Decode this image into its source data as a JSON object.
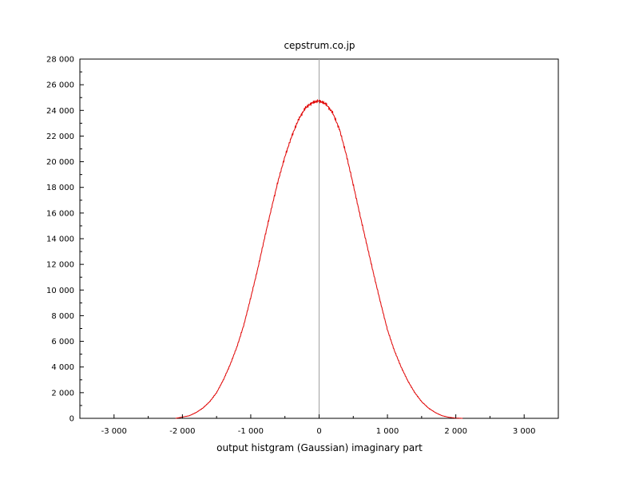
{
  "chart_data": {
    "type": "line",
    "title": "cepstrum.co.jp",
    "xlabel": "output histgram (Gaussian) imaginary part",
    "ylabel": "",
    "xlim": [
      -3500,
      3500
    ],
    "ylim": [
      0,
      28000
    ],
    "x_ticks": [
      -3000,
      -2000,
      -1000,
      0,
      1000,
      2000,
      3000
    ],
    "x_tick_labels": [
      "-3 000",
      "-2 000",
      "-1 000",
      "0",
      "1 000",
      "2 000",
      "3 000"
    ],
    "y_ticks": [
      0,
      2000,
      4000,
      6000,
      8000,
      10000,
      12000,
      14000,
      16000,
      18000,
      20000,
      22000,
      24000,
      26000,
      28000
    ],
    "y_tick_labels": [
      "0",
      "2 000",
      "4 000",
      "6 000",
      "8 000",
      "10 000",
      "12 000",
      "14 000",
      "16 000",
      "18 000",
      "20 000",
      "22 000",
      "24 000",
      "26 000",
      "28 000"
    ],
    "grid": false,
    "reference_line_x": 0,
    "series_color": "#e00000",
    "reference_line_color": "#a0a0a0",
    "series": [
      {
        "x": [
          -2100,
          -2000,
          -1900,
          -1800,
          -1700,
          -1600,
          -1500,
          -1400,
          -1300,
          -1200,
          -1100,
          -1000,
          -900,
          -800,
          -700,
          -600,
          -500,
          -400,
          -300,
          -200,
          -100,
          0,
          100,
          200,
          300,
          400,
          500,
          600,
          700,
          800,
          900,
          1000,
          1100,
          1200,
          1300,
          1400,
          1500,
          1600,
          1700,
          1800,
          1900,
          2000,
          2100
        ],
        "y": [
          0,
          100,
          200,
          450,
          800,
          1300,
          2000,
          3000,
          4200,
          5600,
          7300,
          9400,
          11600,
          14000,
          16300,
          18500,
          20400,
          22000,
          23300,
          24200,
          24600,
          24750,
          24500,
          23800,
          22500,
          20500,
          18200,
          15800,
          13500,
          11200,
          9000,
          6900,
          5300,
          4000,
          2900,
          2000,
          1300,
          800,
          450,
          200,
          80,
          20,
          0
        ]
      }
    ]
  }
}
